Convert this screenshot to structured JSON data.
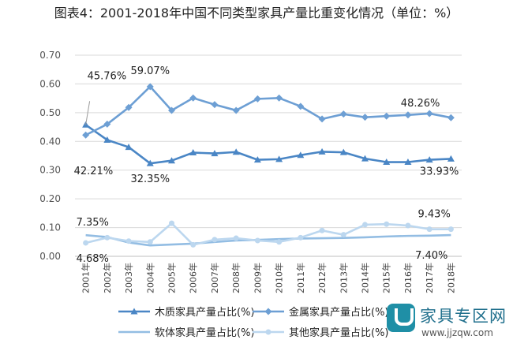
{
  "title": "图表4：2001-2018年中国不同类型家具产量比重变化情况（单位：%）",
  "watermark": {
    "name": "家具专区网",
    "url": "www.jjzqw.com",
    "accent": "#1f8fa6"
  },
  "chart_data": {
    "type": "line",
    "categories": [
      "2001年",
      "2002年",
      "2003年",
      "2004年",
      "2005年",
      "2006年",
      "2007年",
      "2008年",
      "2009年",
      "2010年",
      "2011年",
      "2012年",
      "2013年",
      "2014年",
      "2015年",
      "2016年",
      "2017年",
      "2018年"
    ],
    "ylim": [
      0,
      0.7
    ],
    "yticks": [
      "0.00",
      "0.10",
      "0.20",
      "0.30",
      "0.40",
      "0.50",
      "0.60",
      "0.70"
    ],
    "grid": true,
    "legend_position": "bottom",
    "series": [
      {
        "name": "木质家具产量占比(%)",
        "color": "#4a86c5",
        "marker": "triangle",
        "values": [
          0.4576,
          0.405,
          0.38,
          0.3235,
          0.333,
          0.361,
          0.358,
          0.363,
          0.336,
          0.338,
          0.352,
          0.364,
          0.362,
          0.34,
          0.328,
          0.328,
          0.336,
          0.3393
        ]
      },
      {
        "name": "金属家具产量占比(%)",
        "color": "#6d9fd4",
        "marker": "diamond",
        "values": [
          0.4221,
          0.46,
          0.518,
          0.5907,
          0.508,
          0.551,
          0.528,
          0.508,
          0.548,
          0.551,
          0.522,
          0.478,
          0.495,
          0.484,
          0.488,
          0.492,
          0.497,
          0.4826
        ]
      },
      {
        "name": "软体家具产量占比(%)",
        "color": "#93bde3",
        "marker": "none",
        "values": [
          0.0735,
          0.067,
          0.048,
          0.038,
          0.041,
          0.044,
          0.05,
          0.055,
          0.057,
          0.06,
          0.062,
          0.063,
          0.064,
          0.066,
          0.069,
          0.071,
          0.072,
          0.074
        ]
      },
      {
        "name": "其他家具产量占比(%)",
        "color": "#bcd7ef",
        "marker": "circle",
        "values": [
          0.0468,
          0.065,
          0.053,
          0.05,
          0.115,
          0.04,
          0.058,
          0.063,
          0.055,
          0.05,
          0.065,
          0.09,
          0.075,
          0.11,
          0.112,
          0.107,
          0.0943,
          0.0943
        ]
      }
    ],
    "annotations": [
      {
        "text": "45.76%",
        "series": 0,
        "index": 0
      },
      {
        "text": "42.21%",
        "series": 1,
        "index": 0
      },
      {
        "text": "59.07%",
        "series": 1,
        "index": 3
      },
      {
        "text": "32.35%",
        "series": 0,
        "index": 3
      },
      {
        "text": "48.26%",
        "series": 1,
        "index": 17
      },
      {
        "text": "33.93%",
        "series": 0,
        "index": 17
      },
      {
        "text": "7.35%",
        "series": 2,
        "index": 0
      },
      {
        "text": "4.68%",
        "series": 3,
        "index": 0
      },
      {
        "text": "9.43%",
        "series": 3,
        "index": 16
      },
      {
        "text": "7.40%",
        "series": 2,
        "index": 17
      }
    ]
  }
}
